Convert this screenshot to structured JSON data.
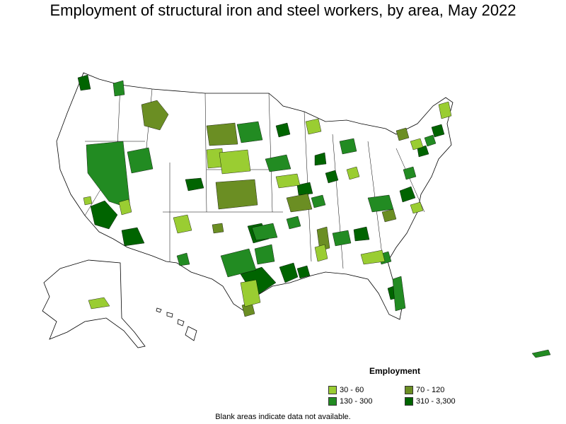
{
  "title": "Employment of structural iron and steel workers, by area, May 2022",
  "legend": {
    "title": "Employment",
    "classes": [
      {
        "label": "30 - 60",
        "color": "#9acd32"
      },
      {
        "label": "70 - 120",
        "color": "#6b8e23"
      },
      {
        "label": "130 - 300",
        "color": "#228b22"
      },
      {
        "label": "310 - 3,300",
        "color": "#006400"
      }
    ]
  },
  "footnote": "Blank areas indicate data not available."
}
